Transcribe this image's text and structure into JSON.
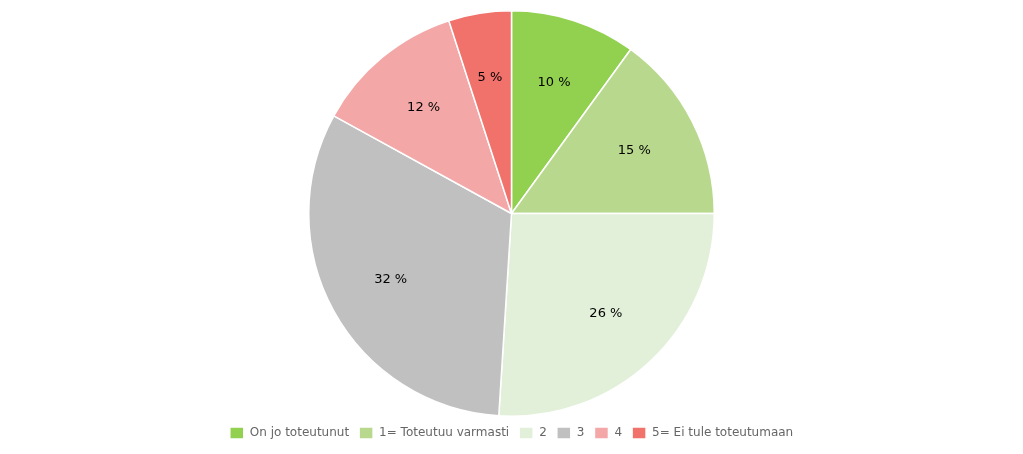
{
  "chart_data": {
    "type": "pie",
    "categories": [
      "On jo toteutunut",
      "1= Toteutuu varmasti",
      "2",
      "3",
      "4",
      "5= Ei tule toteutumaan"
    ],
    "values": [
      10,
      15,
      26,
      32,
      12,
      5
    ],
    "value_labels": [
      "10 %",
      "15 %",
      "26 %",
      "32 %",
      "12 %",
      "5 %"
    ],
    "colors": [
      "#92d050",
      "#b8d98d",
      "#e2f0d9",
      "#c0c0c0",
      "#f4a7a7",
      "#f1716b"
    ],
    "data_labels": true,
    "legend": "bottom"
  }
}
